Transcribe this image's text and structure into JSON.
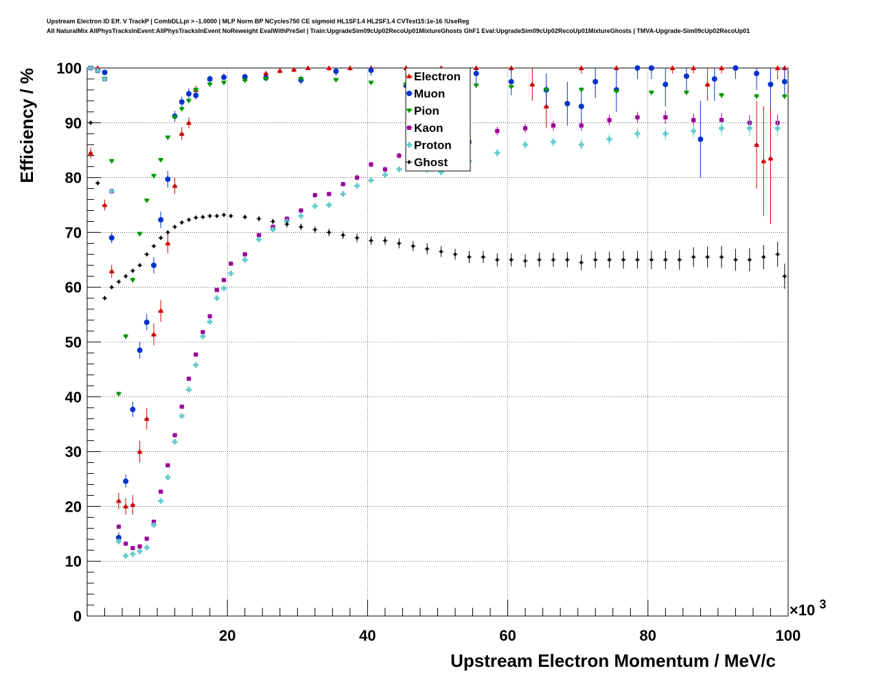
{
  "header": {
    "title_line1": "Upstream Electron ID Eff. V TrackP | CombDLLpi > -1.0000 | MLP Norm BP NCycles750 CE sigmoid HL1SF1.4 HL2SF1.4 CVTest15:1e-16 !UseReg",
    "title_line2": "All NaturalMix AllPhysTracksInEvent:AllPhysTracksInEvent NoReweight EvalWithPreSel | Train:UpgradeSim09cUp02RecoUp01MixtureGhosts GhF1 Eval:UpgradeSim09cUp02RecoUp01MixtureGhosts | TMVA-Upgrade-Sim09cUp02RecoUp01"
  },
  "chart_data": {
    "type": "scatter",
    "xlabel": "Upstream Electron Momentum / MeV/c",
    "ylabel": "Efficiency / %",
    "x_multiplier_label": "×10",
    "x_multiplier_exp": "3",
    "xlim": [
      0,
      100
    ],
    "ylim": [
      0,
      100
    ],
    "x_ticks": [
      "20",
      "40",
      "60",
      "80",
      "100"
    ],
    "y_ticks": [
      "0",
      "10",
      "20",
      "30",
      "40",
      "50",
      "60",
      "70",
      "80",
      "90",
      "100"
    ],
    "grid": true,
    "legend_position": "top-center",
    "series": [
      {
        "name": "Electron",
        "color": "#cc0000",
        "marker": "triangle-up",
        "x": [
          0.5,
          1.5,
          2.5,
          3.5,
          4.5,
          5.5,
          6.5,
          7.5,
          8.5,
          9.5,
          10.5,
          11.5,
          12.5,
          13.5,
          14.5,
          15.5,
          17.5,
          19.5,
          22.5,
          25.5,
          27.5,
          29.5,
          31.5,
          34.5,
          37.5,
          40.5,
          45.5,
          50.5,
          55.5,
          60.5,
          63.5,
          65.5,
          70.5,
          75.5,
          80.5,
          83.5,
          86.5,
          88.5,
          90.5,
          92.5,
          95.5,
          96.5,
          97.5,
          98.5,
          99.5
        ],
        "y": [
          84.5,
          100,
          75,
          62.9,
          21,
          20,
          20.3,
          30,
          36,
          51.4,
          55.7,
          68,
          78.5,
          88,
          90,
          96,
          98,
          98.5,
          98,
          99,
          99.5,
          99.7,
          100,
          100,
          100,
          100,
          100,
          100,
          100,
          100,
          97,
          93,
          100,
          100,
          100,
          100,
          100,
          97,
          100,
          100,
          86,
          83,
          83.5,
          100,
          100
        ],
        "yerr": [
          1,
          0.5,
          1,
          1.2,
          1.5,
          1.5,
          1.8,
          2,
          2,
          2,
          2,
          1.8,
          1.5,
          1.2,
          1,
          0.8,
          0.6,
          0.5,
          0.5,
          0.5,
          0.5,
          0.5,
          0.3,
          0.5,
          0.5,
          0.5,
          0.5,
          0.5,
          0.5,
          1,
          3,
          4,
          1,
          1,
          1,
          1,
          1,
          3,
          1,
          1,
          8,
          10,
          12,
          2,
          2
        ]
      },
      {
        "name": "Muon",
        "color": "#0033cc",
        "marker": "circle",
        "x": [
          0.5,
          1.5,
          2.5,
          3.5,
          4.5,
          5.5,
          6.5,
          7.5,
          8.5,
          9.5,
          10.5,
          11.5,
          12.5,
          13.5,
          14.5,
          15.5,
          17.5,
          19.5,
          22.5,
          25.5,
          30.5,
          35.5,
          40.5,
          45.5,
          50.5,
          55.5,
          60.5,
          65.5,
          68.5,
          70.5,
          72.5,
          75.5,
          78.5,
          80.5,
          82.5,
          85.5,
          87.5,
          89.5,
          92.5,
          95.5,
          97.5,
          99.5
        ],
        "y": [
          100,
          99.5,
          99.2,
          69,
          14.3,
          24.6,
          37.7,
          48.5,
          53.6,
          64,
          72.3,
          79.7,
          91.2,
          93.8,
          95.3,
          95,
          98,
          98.3,
          98.4,
          98.2,
          97.8,
          99.4,
          99.6,
          96.8,
          98,
          99,
          97.5,
          96,
          93.5,
          93,
          97.5,
          96,
          100,
          100,
          97,
          98.5,
          87,
          98,
          100,
          99,
          97,
          97.5
        ],
        "yerr": [
          0.3,
          0.3,
          0.5,
          1,
          1,
          1.2,
          1.4,
          1.5,
          1.5,
          1.5,
          1.5,
          1.5,
          1,
          1,
          1,
          0.8,
          0.6,
          0.5,
          0.5,
          0.5,
          0.8,
          0.8,
          1,
          1.5,
          1.5,
          2,
          2.5,
          3,
          4,
          3.5,
          3,
          4,
          2,
          2,
          4,
          3,
          7,
          4,
          2,
          3,
          4,
          3
        ]
      },
      {
        "name": "Pion",
        "color": "#009900",
        "marker": "triangle-down",
        "x": [
          0.5,
          1.5,
          2.5,
          3.5,
          4.5,
          5.5,
          6.5,
          7.5,
          8.5,
          9.5,
          10.5,
          11.5,
          12.5,
          13.5,
          14.5,
          15.5,
          17.5,
          19.5,
          22.5,
          25.5,
          30.5,
          35.5,
          40.5,
          45.5,
          50.5,
          55.5,
          60.5,
          65.5,
          70.5,
          75.5,
          80.5,
          85.5,
          90.5,
          95.5,
          99.5
        ],
        "y": [
          100,
          99.5,
          98,
          83,
          40.5,
          51,
          61.3,
          69.7,
          75.8,
          80.3,
          83.2,
          87.3,
          91,
          92.5,
          94,
          96,
          97,
          97.3,
          97.7,
          98,
          98,
          97.8,
          97.3,
          97,
          97.2,
          96.8,
          96.5,
          96,
          96,
          95.7,
          95.5,
          95.5,
          95,
          94.8,
          94.8
        ],
        "yerr": [
          0.2,
          0.2,
          0.3,
          0.4,
          0.5,
          0.5,
          0.5,
          0.5,
          0.4,
          0.4,
          0.4,
          0.3,
          0.3,
          0.3,
          0.3,
          0.3,
          0.2,
          0.2,
          0.2,
          0.2,
          0.2,
          0.2,
          0.3,
          0.3,
          0.3,
          0.3,
          0.3,
          0.4,
          0.4,
          0.4,
          0.4,
          0.4,
          0.5,
          0.5,
          0.5
        ]
      },
      {
        "name": "Kaon",
        "color": "#990099",
        "marker": "square",
        "x": [
          0.5,
          1.5,
          2.5,
          3.5,
          4.5,
          5.5,
          6.5,
          7.5,
          8.5,
          9.5,
          10.5,
          11.5,
          12.5,
          13.5,
          14.5,
          15.5,
          16.5,
          17.5,
          18.5,
          19.5,
          20.5,
          22.5,
          24.5,
          26.5,
          28.5,
          30.5,
          32.5,
          34.5,
          36.5,
          38.5,
          40.5,
          42.5,
          44.5,
          46.5,
          48.5,
          50.5,
          54.5,
          58.5,
          62.5,
          66.5,
          70.5,
          74.5,
          78.5,
          82.5,
          86.5,
          90.5,
          94.5,
          98.5
        ],
        "y": [
          100,
          99.5,
          98,
          77.5,
          16.3,
          13.2,
          12.4,
          12.7,
          14.1,
          17.2,
          22.7,
          27.5,
          33,
          38.2,
          43.3,
          47.7,
          51.8,
          54.7,
          59.5,
          61.3,
          64.3,
          66,
          69.5,
          71,
          72.5,
          74,
          76.8,
          77,
          78.8,
          80,
          82.4,
          81.5,
          84,
          84,
          84,
          84.5,
          86.5,
          88.5,
          89,
          89.5,
          89.5,
          90.5,
          91,
          91,
          90.5,
          90.5,
          90,
          90
        ],
        "yerr": [
          0.2,
          0.2,
          0.3,
          0.5,
          0.4,
          0.3,
          0.3,
          0.3,
          0.3,
          0.3,
          0.3,
          0.3,
          0.3,
          0.3,
          0.3,
          0.3,
          0.3,
          0.3,
          0.3,
          0.3,
          0.3,
          0.3,
          0.3,
          0.3,
          0.4,
          0.4,
          0.4,
          0.4,
          0.4,
          0.5,
          0.5,
          0.5,
          0.5,
          0.5,
          0.6,
          0.6,
          0.7,
          0.8,
          0.8,
          0.9,
          1,
          1,
          1,
          1.2,
          1.2,
          1.3,
          1.4,
          1.5
        ]
      },
      {
        "name": "Proton",
        "color": "#66cccc",
        "marker": "cross",
        "x": [
          0.5,
          1.5,
          2.5,
          3.5,
          4.5,
          5.5,
          6.5,
          7.5,
          8.5,
          9.5,
          10.5,
          11.5,
          12.5,
          13.5,
          14.5,
          15.5,
          16.5,
          17.5,
          18.5,
          19.5,
          20.5,
          22.5,
          24.5,
          26.5,
          28.5,
          30.5,
          32.5,
          34.5,
          36.5,
          38.5,
          40.5,
          42.5,
          44.5,
          46.5,
          48.5,
          50.5,
          54.5,
          58.5,
          62.5,
          66.5,
          70.5,
          74.5,
          78.5,
          82.5,
          86.5,
          90.5,
          94.5,
          98.5
        ],
        "y": [
          100,
          99.5,
          98,
          77.5,
          13.6,
          11,
          11.3,
          11.8,
          12.5,
          16.6,
          21,
          25.3,
          31.8,
          36.5,
          41.3,
          45.8,
          51,
          53.7,
          58,
          59.8,
          62.5,
          65,
          68.7,
          70.5,
          72,
          73,
          74.8,
          75,
          77,
          78.5,
          79.5,
          80.5,
          81.5,
          82,
          81.5,
          81,
          83,
          84.5,
          86,
          86.5,
          86,
          87,
          88,
          88,
          88.5,
          89,
          89,
          89
        ],
        "yerr": [
          0.2,
          0.2,
          0.3,
          0.5,
          0.4,
          0.3,
          0.3,
          0.3,
          0.3,
          0.3,
          0.3,
          0.3,
          0.3,
          0.3,
          0.3,
          0.3,
          0.3,
          0.3,
          0.3,
          0.3,
          0.3,
          0.3,
          0.3,
          0.3,
          0.4,
          0.4,
          0.4,
          0.4,
          0.4,
          0.5,
          0.5,
          0.5,
          0.5,
          0.5,
          0.6,
          0.6,
          0.7,
          0.8,
          0.8,
          0.9,
          1,
          1,
          1,
          1.2,
          1.2,
          1.3,
          1.4,
          1.5
        ]
      },
      {
        "name": "Ghost",
        "color": "#000000",
        "marker": "diamond",
        "x": [
          0.5,
          1.5,
          2.5,
          3.5,
          4.5,
          5.5,
          6.5,
          7.5,
          8.5,
          9.5,
          10.5,
          11.5,
          12.5,
          13.5,
          14.5,
          15.5,
          16.5,
          17.5,
          18.5,
          19.5,
          20.5,
          22.5,
          24.5,
          26.5,
          28.5,
          30.5,
          32.5,
          34.5,
          36.5,
          38.5,
          40.5,
          42.5,
          44.5,
          46.5,
          48.5,
          50.5,
          52.5,
          54.5,
          56.5,
          58.5,
          60.5,
          62.5,
          64.5,
          66.5,
          68.5,
          70.5,
          72.5,
          74.5,
          76.5,
          78.5,
          80.5,
          82.5,
          84.5,
          86.5,
          88.5,
          90.5,
          92.5,
          94.5,
          96.5,
          98.5,
          99.5
        ],
        "y": [
          90,
          79,
          58,
          60,
          61,
          62,
          63,
          64,
          66,
          67.5,
          69,
          70,
          71,
          71.8,
          72.3,
          72.7,
          72.8,
          73,
          73,
          73.2,
          73,
          72.8,
          72.5,
          72,
          71.5,
          71,
          70.5,
          70,
          69.5,
          69,
          68.5,
          68.5,
          68,
          67.5,
          67,
          66.5,
          66,
          65.5,
          65.5,
          65,
          65,
          64.8,
          65,
          65,
          65,
          64.5,
          65,
          65,
          65,
          65,
          65,
          65,
          65,
          65.5,
          65.5,
          65.5,
          65,
          65,
          65.5,
          66,
          62
        ],
        "yerr": [
          0.4,
          0.4,
          0.4,
          0.3,
          0.3,
          0.3,
          0.3,
          0.3,
          0.3,
          0.3,
          0.3,
          0.3,
          0.3,
          0.3,
          0.3,
          0.3,
          0.3,
          0.3,
          0.3,
          0.3,
          0.3,
          0.4,
          0.5,
          0.5,
          0.6,
          0.6,
          0.6,
          0.7,
          0.7,
          0.8,
          0.8,
          0.8,
          0.9,
          0.9,
          1,
          1,
          1,
          1.1,
          1.1,
          1.2,
          1.2,
          1.2,
          1.3,
          1.3,
          1.4,
          1.4,
          1.5,
          1.5,
          1.6,
          1.6,
          1.7,
          1.7,
          1.8,
          1.8,
          1.9,
          2,
          2,
          2.1,
          2.2,
          2.3,
          2.3
        ]
      }
    ]
  }
}
